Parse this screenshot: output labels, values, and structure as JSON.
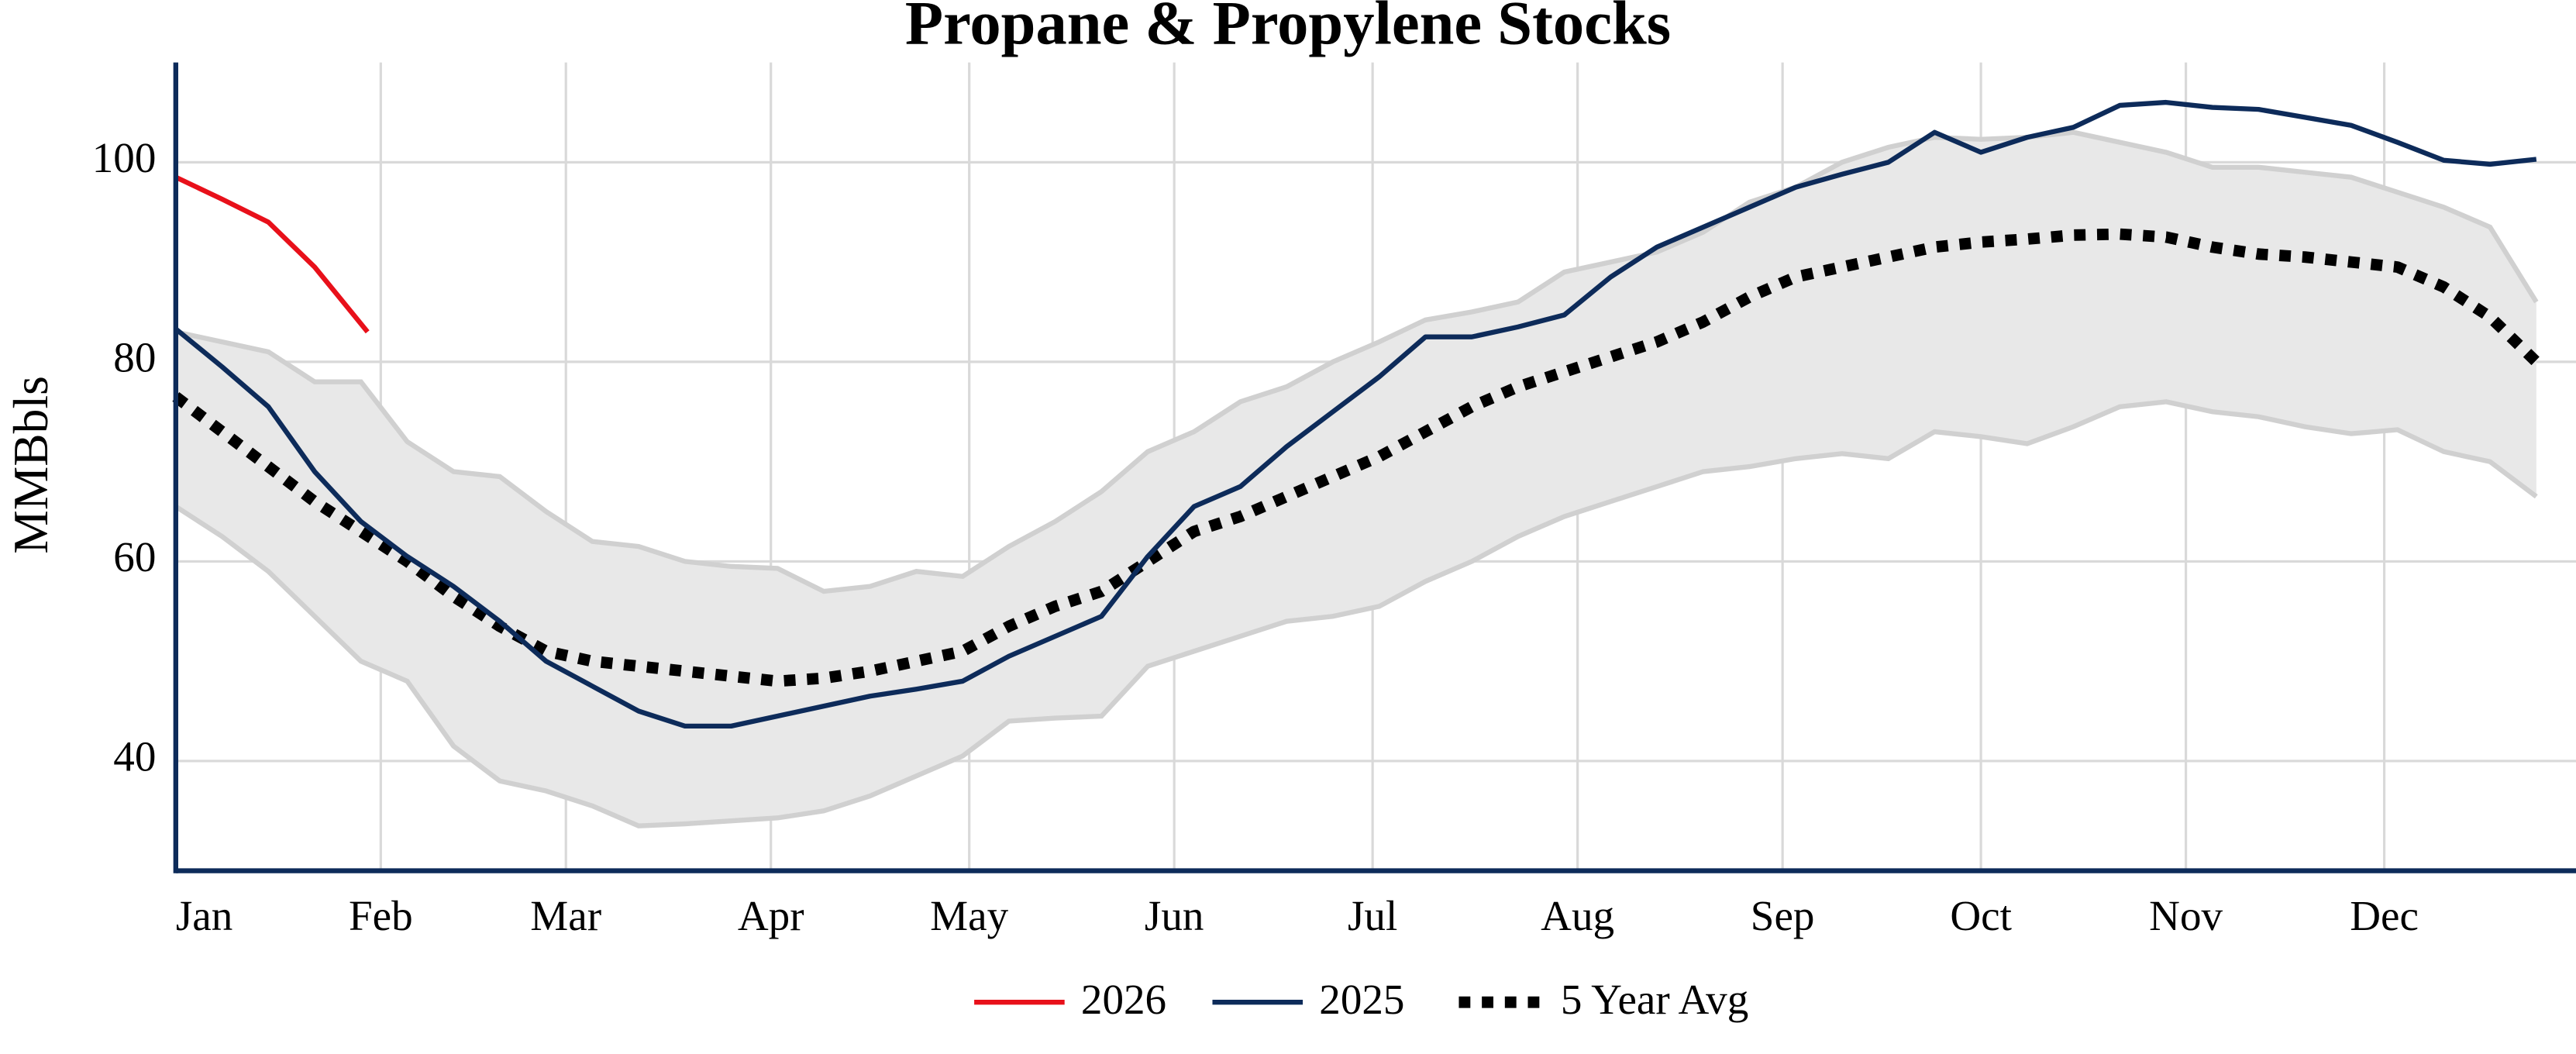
{
  "chart_data": {
    "type": "line",
    "title": "Propane & Propylene Stocks",
    "y_label": "MMBbls",
    "xlim": [
      0,
      363
    ],
    "ylim": [
      29,
      110
    ],
    "xticks": [
      {
        "value": 0,
        "label": "Jan"
      },
      {
        "value": 31,
        "label": "Feb"
      },
      {
        "value": 59,
        "label": "Mar"
      },
      {
        "value": 90,
        "label": "Apr"
      },
      {
        "value": 120,
        "label": "May"
      },
      {
        "value": 151,
        "label": "Jun"
      },
      {
        "value": 181,
        "label": "Jul"
      },
      {
        "value": 212,
        "label": "Aug"
      },
      {
        "value": 243,
        "label": "Sep"
      },
      {
        "value": 273,
        "label": "Oct"
      },
      {
        "value": 304,
        "label": "Nov"
      },
      {
        "value": 334,
        "label": "Dec"
      }
    ],
    "yticks": [
      40,
      60,
      80,
      100
    ],
    "grid": true,
    "x": [
      0,
      7,
      14,
      21,
      28,
      35,
      42,
      49,
      56,
      63,
      70,
      77,
      84,
      91,
      98,
      105,
      112,
      119,
      126,
      133,
      140,
      147,
      154,
      161,
      168,
      175,
      182,
      189,
      196,
      203,
      210,
      217,
      224,
      231,
      238,
      245,
      252,
      259,
      266,
      273,
      280,
      287,
      294,
      301,
      308,
      315,
      322,
      329,
      336,
      343,
      350,
      357
    ],
    "range": {
      "color": "#e8e8e8",
      "edge_color": "#d0d0d0",
      "high": [
        83,
        82,
        81,
        78,
        78,
        72,
        69,
        68.5,
        65,
        62,
        61.5,
        60,
        59.5,
        59.3,
        57,
        57.5,
        59,
        58.5,
        61.5,
        64,
        67,
        71,
        73,
        76,
        77.5,
        80,
        82,
        84.2,
        85,
        86,
        89,
        90,
        91,
        93,
        96,
        97.5,
        100,
        101.5,
        102.5,
        102.3,
        102.5,
        103,
        102,
        101,
        99.5,
        99.5,
        99,
        98.5,
        97,
        95.5,
        93.5,
        86
      ],
      "low": [
        65.5,
        62.5,
        59,
        54.5,
        50,
        48,
        41.5,
        38,
        37,
        35.5,
        33.5,
        33.7,
        34,
        34.3,
        35,
        36.5,
        38.5,
        40.5,
        44,
        44.3,
        44.5,
        49.5,
        51,
        52.5,
        54,
        54.5,
        55.5,
        58,
        60,
        62.5,
        64.5,
        66,
        67.5,
        69,
        69.5,
        70.3,
        70.8,
        70.3,
        73,
        72.5,
        71.8,
        73.5,
        75.5,
        76,
        75,
        74.5,
        73.5,
        72.8,
        73.2,
        71,
        70,
        66.5
      ]
    },
    "series": [
      {
        "name": "2026",
        "color": "#e8101a",
        "line_style": "solid",
        "x": [
          0,
          7,
          14,
          21,
          29
        ],
        "values": [
          98.5,
          96.3,
          94,
          89.5,
          83
        ]
      },
      {
        "name": "2025",
        "color": "#0d2b5a",
        "line_style": "solid",
        "values": [
          83.3,
          79.5,
          75.5,
          69,
          64,
          60.5,
          57.5,
          54,
          50,
          47.5,
          45,
          43.5,
          43.5,
          44.5,
          45.5,
          46.5,
          47.2,
          48,
          50.5,
          52.5,
          54.5,
          60.5,
          65.5,
          67.5,
          71.5,
          75,
          78.5,
          82.5,
          82.5,
          83.5,
          84.7,
          88.5,
          91.5,
          93.5,
          95.5,
          97.5,
          98.8,
          100,
          103,
          101,
          102.5,
          103.5,
          105.7,
          106,
          105.5,
          105.3,
          104.5,
          103.7,
          102,
          100.2,
          99.8,
          100.3
        ]
      },
      {
        "name": "5 Year Avg",
        "color": "#000000",
        "line_style": "dotted",
        "values": [
          76.5,
          73,
          69.5,
          66,
          63,
          60,
          56.5,
          53.5,
          51,
          50,
          49.5,
          49,
          48.5,
          48,
          48.3,
          49,
          50,
          51,
          53.5,
          55.5,
          57,
          60,
          63,
          64.5,
          66.5,
          68.5,
          70.5,
          73,
          75.5,
          77.5,
          79,
          80.5,
          82,
          84,
          86.5,
          88.5,
          89.5,
          90.5,
          91.5,
          92,
          92.3,
          92.7,
          92.8,
          92.5,
          91.5,
          90.8,
          90.5,
          90,
          89.5,
          87.5,
          84.5,
          80
        ]
      }
    ]
  }
}
